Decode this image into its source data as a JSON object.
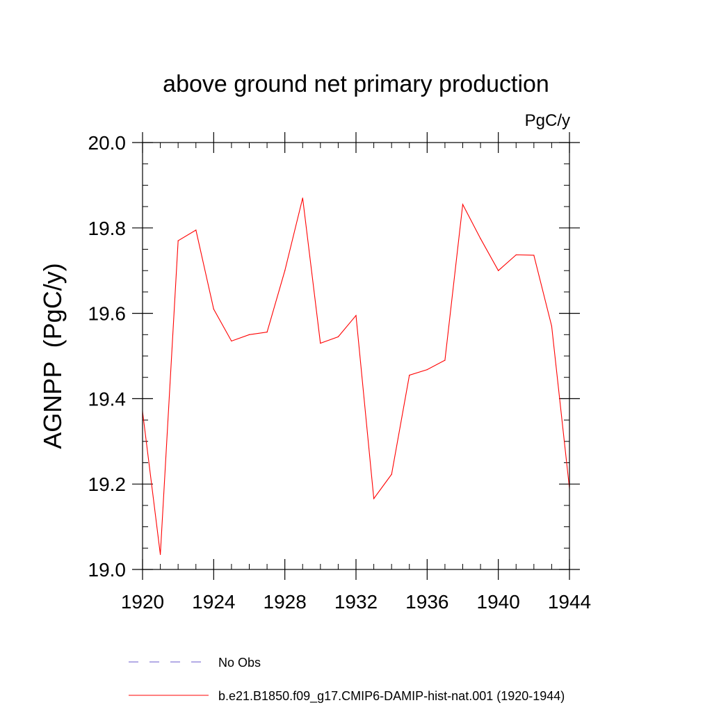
{
  "chart_data": {
    "type": "line",
    "title": "above ground net primary production",
    "units_label": "PgC/y",
    "ylabel": "AGNPP  (PgC/y)",
    "xlabel": "",
    "xlim": [
      1920,
      1944
    ],
    "ylim": [
      19.0,
      20.0
    ],
    "x_ticks": [
      1920,
      1924,
      1928,
      1932,
      1936,
      1940,
      1944
    ],
    "x_tick_labels": [
      "1920",
      "1924",
      "1928",
      "1932",
      "1936",
      "1940",
      "1944"
    ],
    "y_ticks": [
      19.0,
      19.2,
      19.4,
      19.6,
      19.8,
      20.0
    ],
    "y_tick_labels": [
      "19.0",
      "19.2",
      "19.4",
      "19.6",
      "19.8",
      "20.0"
    ],
    "grid": false,
    "legend_position": "bottom",
    "series": [
      {
        "name": "b.e21.B1850.f09_g17.CMIP6-DAMIP-hist-nat.001 (1920-1944)",
        "color": "#ff0000",
        "style": "solid",
        "x": [
          1920,
          1921,
          1922,
          1923,
          1924,
          1925,
          1926,
          1927,
          1928,
          1929,
          1930,
          1931,
          1932,
          1933,
          1934,
          1935,
          1936,
          1937,
          1938,
          1939,
          1940,
          1941,
          1942,
          1943,
          1944
        ],
        "y": [
          19.37,
          19.035,
          19.77,
          19.795,
          19.61,
          19.535,
          19.55,
          19.556,
          19.7,
          19.87,
          19.53,
          19.545,
          19.595,
          19.166,
          19.223,
          19.455,
          19.468,
          19.49,
          19.855,
          19.775,
          19.7,
          19.737,
          19.736,
          19.57,
          19.19
        ]
      }
    ],
    "legend": [
      {
        "label": "No Obs",
        "color": "#6a5acd",
        "style": "dashed"
      },
      {
        "label": "b.e21.B1850.f09_g17.CMIP6-DAMIP-hist-nat.001 (1920-1944)",
        "color": "#ff0000",
        "style": "solid"
      }
    ]
  }
}
